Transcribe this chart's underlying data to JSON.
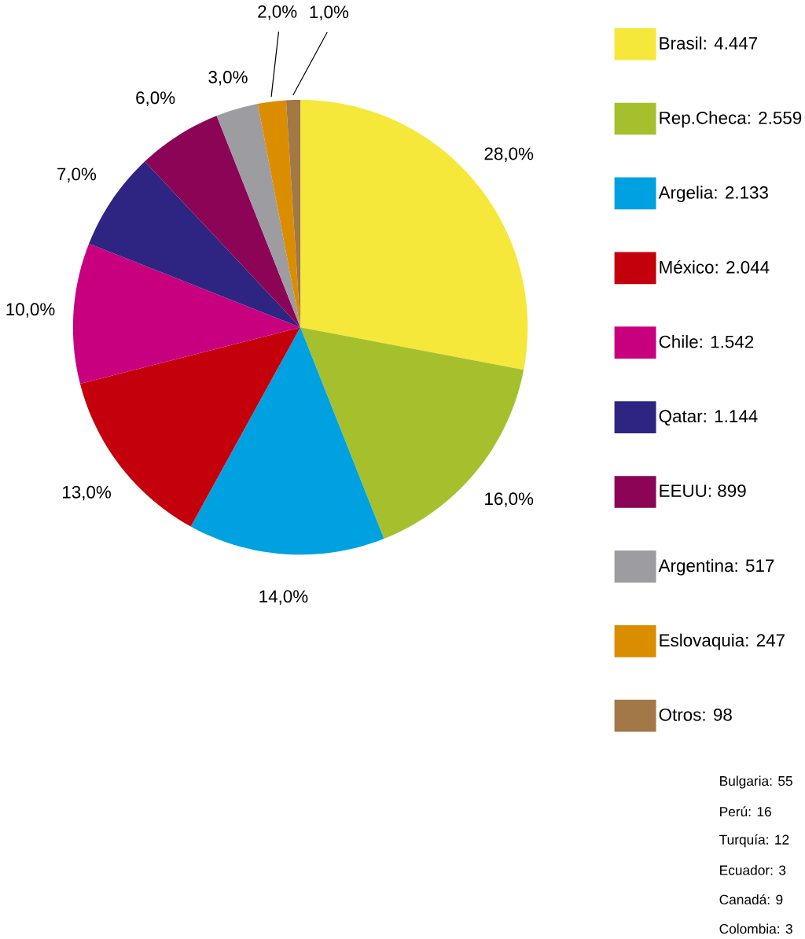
{
  "chart_data": {
    "type": "pie",
    "categories": [
      "Brasil: 4.447",
      "Rep.Checa: 2.559",
      "Argelia: 2.133",
      "México: 2.044",
      "Chile: 1.542",
      "Qatar: 1.144",
      "EEUU: 899",
      "Argentina: 517",
      "Eslovaquia: 247",
      "Otros: 98"
    ],
    "values": [
      28,
      16,
      14,
      13,
      10,
      7,
      6,
      3,
      2,
      1
    ],
    "colors": [
      "#f5e83a",
      "#a5c02c",
      "#00a1e0",
      "#c4000c",
      "#c8007f",
      "#2e2482",
      "#8b0456",
      "#9d9ca1",
      "#db8d00",
      "#a27847"
    ],
    "value_labels": [
      "28,0%",
      "16,0%",
      "14,0%",
      "13,0%",
      "10,0%",
      "7,0%",
      "6,0%",
      "3,0%",
      "2,0%",
      "1,0%"
    ],
    "legend": "right",
    "annotations": [
      "Bulgaria: 55",
      "Perú: 16",
      "Turquía: 12",
      "Ecuador: 3",
      "Canadá: 9",
      "Colombia: 3"
    ]
  }
}
